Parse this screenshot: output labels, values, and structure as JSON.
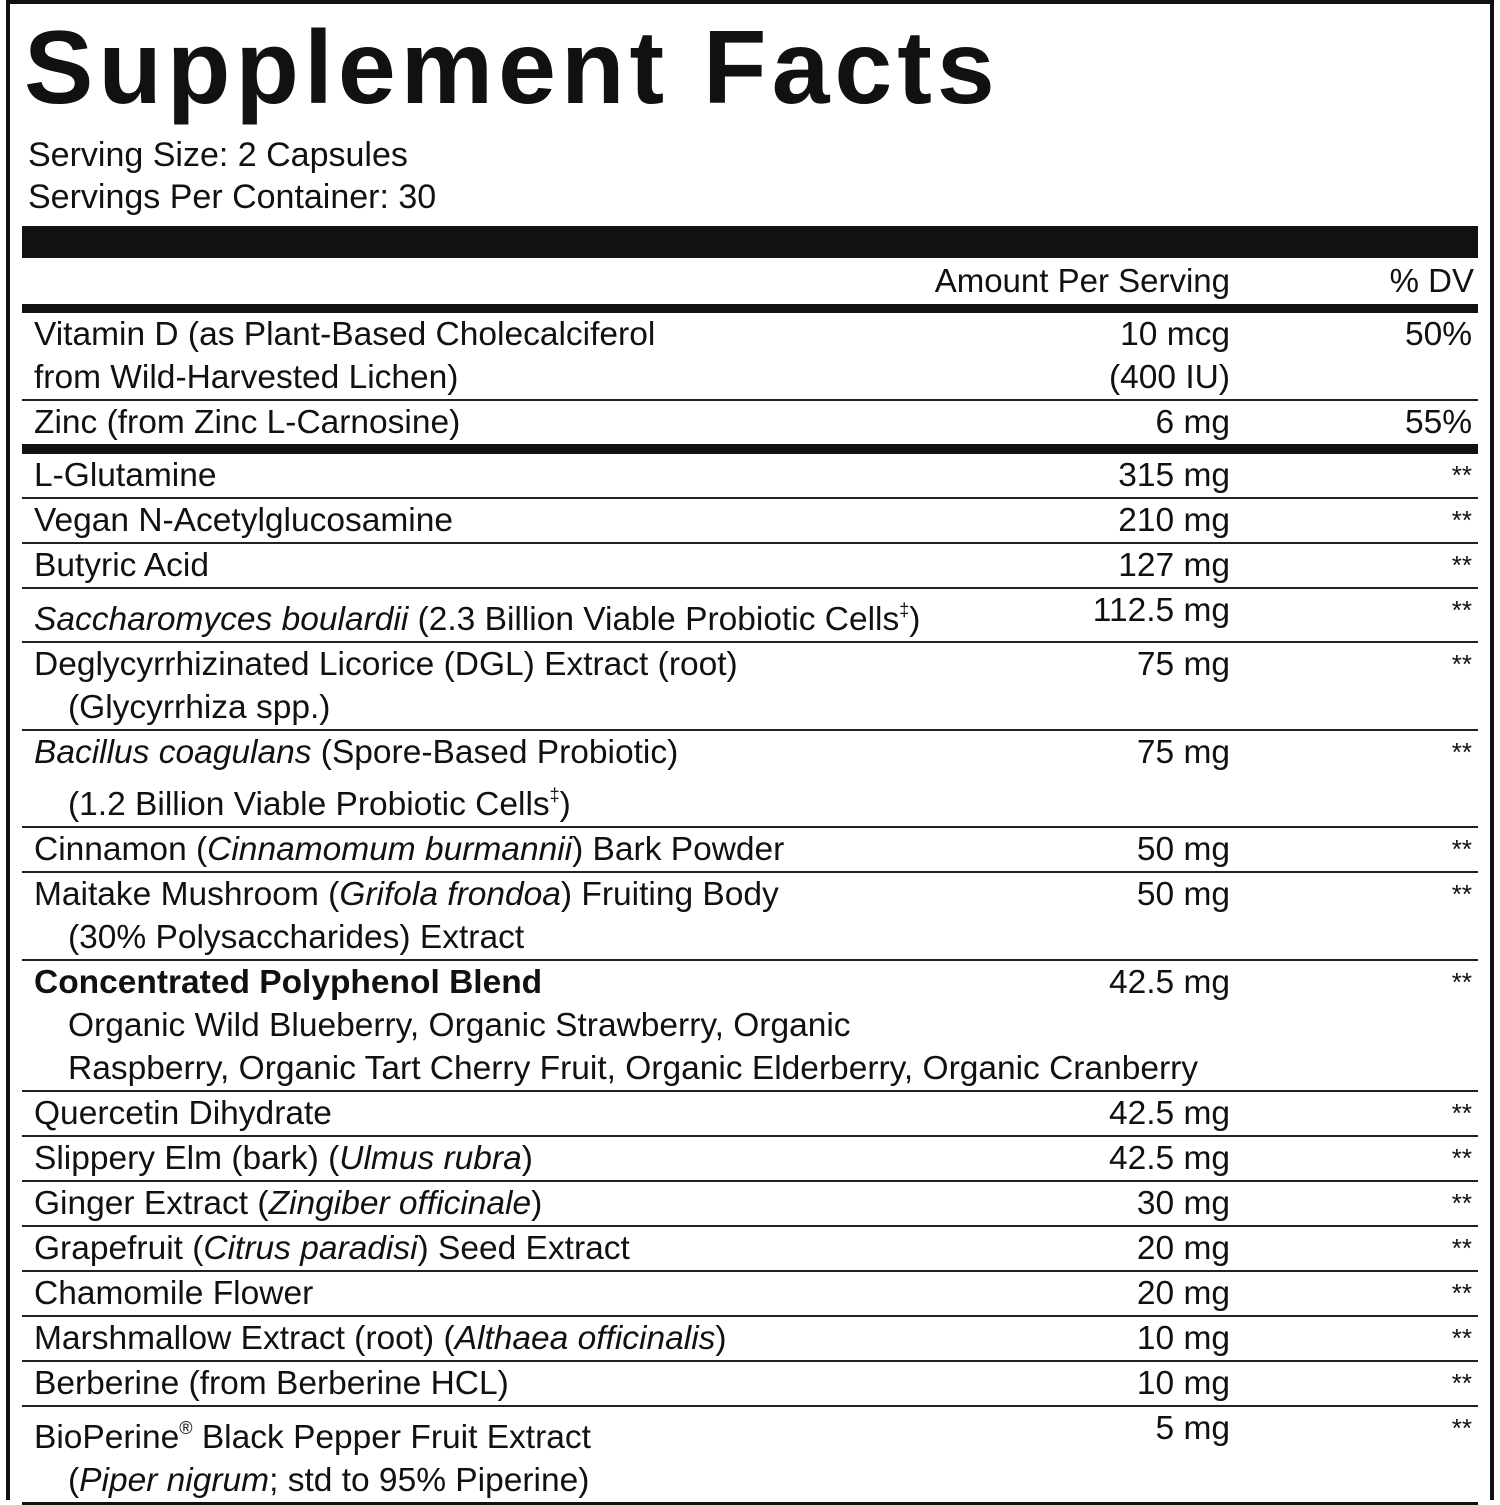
{
  "header": {
    "title": "Supplement Facts",
    "serving_size": "Serving Size: 2 Capsules",
    "servings_per_container": "Servings Per Container: 30"
  },
  "table": {
    "columns": [
      "Amount Per Serving",
      "% DV"
    ],
    "sections": [
      {
        "rows": [
          {
            "name": [
              [
                "Vitamin D (as Plant-Based Cholecalciferol"
              ],
              [
                "from Wild-Harvested Lichen)"
              ]
            ],
            "amount": [
              "10 mcg",
              "(400 IU)"
            ],
            "dv": "50%"
          },
          {
            "name": [
              [
                "Zinc (from Zinc L-Carnosine)"
              ]
            ],
            "amount": [
              "6 mg"
            ],
            "dv": "55%"
          }
        ]
      },
      {
        "rows": [
          {
            "name": [
              [
                "L-Glutamine"
              ]
            ],
            "amount": [
              "315 mg"
            ],
            "dv": "**"
          },
          {
            "name": [
              [
                "Vegan N-Acetylglucosamine"
              ]
            ],
            "amount": [
              "210 mg"
            ],
            "dv": "**"
          },
          {
            "name": [
              [
                "Butyric Acid"
              ]
            ],
            "amount": [
              "127 mg"
            ],
            "dv": "**"
          },
          {
            "name": [
              [
                {
                  "text": "Saccharomyces boulardii",
                  "italic": true
                },
                " (2.3 Billion Viable Probiotic Cells",
                {
                  "text": "‡",
                  "sup": true
                },
                ")"
              ]
            ],
            "amount": [
              "112.5 mg"
            ],
            "dv": "**"
          },
          {
            "name": [
              [
                "Deglycyrrhizinated Licorice (DGL) Extract (root)"
              ],
              [
                "(Glycyrrhiza spp.)"
              ]
            ],
            "amount": [
              "75 mg"
            ],
            "dv": "**"
          },
          {
            "name": [
              [
                {
                  "text": "Bacillus coagulans",
                  "italic": true
                },
                " (Spore-Based Probiotic)"
              ],
              [
                "(1.2 Billion Viable Probiotic Cells",
                {
                  "text": "‡",
                  "sup": true
                },
                ")"
              ]
            ],
            "amount": [
              "75 mg"
            ],
            "dv": "**"
          },
          {
            "name": [
              [
                "Cinnamon (",
                {
                  "text": "Cinnamomum burmannii",
                  "italic": true
                },
                ") Bark Powder"
              ]
            ],
            "amount": [
              "50 mg"
            ],
            "dv": "**"
          },
          {
            "name": [
              [
                "Maitake Mushroom (",
                {
                  "text": "Grifola frondoa",
                  "italic": true
                },
                ") Fruiting Body"
              ],
              [
                "(30% Polysaccharides) Extract"
              ]
            ],
            "amount": [
              "50 mg"
            ],
            "dv": "**"
          },
          {
            "name": [
              [
                {
                  "text": "Concentrated Polyphenol Blend",
                  "bold": true
                }
              ],
              [
                "Organic Wild Blueberry, Organic Strawberry, Organic"
              ],
              [
                "Raspberry, Organic Tart Cherry Fruit, Organic Elderberry, Organic Cranberry"
              ]
            ],
            "amount": [
              "42.5 mg"
            ],
            "dv": "**"
          },
          {
            "name": [
              [
                "Quercetin Dihydrate"
              ]
            ],
            "amount": [
              "42.5 mg"
            ],
            "dv": "**"
          },
          {
            "name": [
              [
                "Slippery Elm (bark) (",
                {
                  "text": "Ulmus rubra",
                  "italic": true
                },
                ")"
              ]
            ],
            "amount": [
              "42.5 mg"
            ],
            "dv": "**"
          },
          {
            "name": [
              [
                "Ginger Extract (",
                {
                  "text": "Zingiber officinale",
                  "italic": true
                },
                ")"
              ]
            ],
            "amount": [
              "30 mg"
            ],
            "dv": "**"
          },
          {
            "name": [
              [
                "Grapefruit (",
                {
                  "text": "Citrus paradisi",
                  "italic": true
                },
                ") Seed Extract"
              ]
            ],
            "amount": [
              "20 mg"
            ],
            "dv": "**"
          },
          {
            "name": [
              [
                "Chamomile Flower"
              ]
            ],
            "amount": [
              "20 mg"
            ],
            "dv": "**"
          },
          {
            "name": [
              [
                "Marshmallow Extract (root) (",
                {
                  "text": "Althaea officinalis",
                  "italic": true
                },
                ")"
              ]
            ],
            "amount": [
              "10 mg"
            ],
            "dv": "**"
          },
          {
            "name": [
              [
                "Berberine (from Berberine HCL)"
              ]
            ],
            "amount": [
              "10 mg"
            ],
            "dv": "**"
          },
          {
            "name": [
              [
                "BioPerine",
                {
                  "text": "®",
                  "sup": true
                },
                " Black Pepper Fruit Extract"
              ],
              [
                "(",
                {
                  "text": "Piper nigrum",
                  "italic": true
                },
                "; std to 95% Piperine)"
              ]
            ],
            "amount": [
              "5 mg"
            ],
            "dv": "**"
          }
        ]
      }
    ]
  }
}
